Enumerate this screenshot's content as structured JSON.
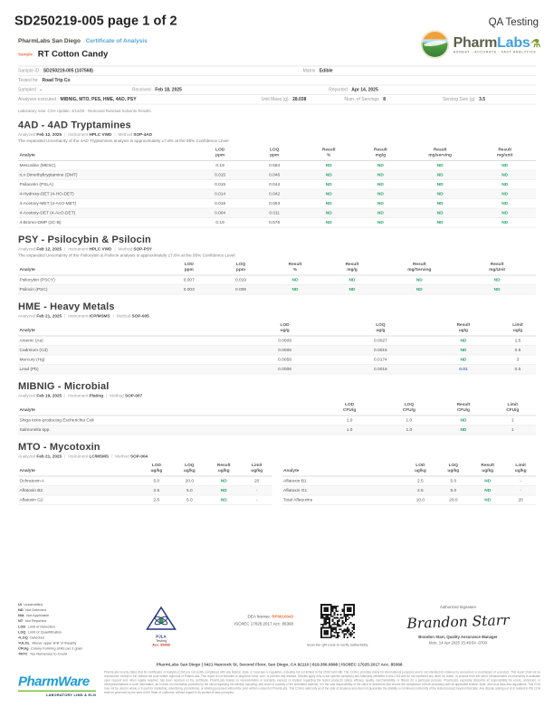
{
  "header": {
    "doc_id": "SD250219-005 page 1 of 2",
    "qa_label": "QA Testing",
    "lab_name": "PharmLabs San Diego",
    "coa_label": "Certificate of Analysis",
    "sample_label": "Sample",
    "sample_name": "RT Cotton Candy",
    "logo": {
      "brand_pharm": "Pharm",
      "brand_labs": "Labs",
      "tagline": "HONEST · ACCURATE · FAST ANALYTICS"
    }
  },
  "sample_info": {
    "sample_id_label": "Sample ID",
    "sample_id": "SD250219-005 (107568)",
    "matrix_label": "Matrix",
    "matrix": "Edible",
    "tested_for_label": "Tested for",
    "tested_for": "Road Trip Co",
    "sampled_label": "Sampled",
    "sampled": "-",
    "received_label": "Received",
    "received": "Feb 18, 2025",
    "reported_label": "Reported",
    "reported": "Apr 14, 2025",
    "analyses_label": "Analyses executed",
    "analyses": "MIBNIG, MTO, PES, HME, 4AD, PSY",
    "unit_mass_label": "Unit Mass (g)",
    "unit_mass": "28.038",
    "servings_label": "Num. of Servings",
    "servings": "8",
    "serving_size_label": "Serving Size (g)",
    "serving_size": "3.5",
    "note": "Laboratory note: COA Update: 4/14/25 - Removed Residual Solvents Results."
  },
  "sections": [
    {
      "title": "4AD - 4AD Tryptamines",
      "meta": [
        [
          "Analyzed",
          "Feb 12, 2025"
        ],
        [
          "Instrument",
          "HPLC VWD"
        ],
        [
          "Method",
          "SOP-4AD"
        ]
      ],
      "uncertainty": "The expanded Uncertainty of the 4AD Tryptamines analysis is approximately ±7.8% at the 95% Confidence Level",
      "tables": [
        {
          "columns": [
            "Analyte",
            "LOD\nppm",
            "LOQ\nppm",
            "Result\n%",
            "Result\nmg/g",
            "Result\nmg/serving",
            "Result\nmg/unit"
          ],
          "widths": [
            34,
            10,
            11,
            10,
            10,
            13,
            12
          ],
          "rows": [
            [
              "Mescaline (MESC)",
              "0.19",
              "0.584",
              "ND",
              "ND",
              "ND",
              "ND"
            ],
            [
              "n,n Dimethyltryptamine (DMT)",
              "0.015",
              "0.046",
              "ND",
              "ND",
              "ND",
              "ND"
            ],
            [
              "Psilacetin (PSLA)",
              "0.015",
              "0.044",
              "ND",
              "ND",
              "ND",
              "ND"
            ],
            [
              "4-Hydroxy-DET (4-HO-DET)",
              "0.014",
              "0.042",
              "ND",
              "ND",
              "ND",
              "ND"
            ],
            [
              "4-Acetoxy-MET (4-AcO-MET)",
              "0.018",
              "0.053",
              "ND",
              "ND",
              "ND",
              "ND"
            ],
            [
              "4-Acetoxy-DET (4-AcO-DET)",
              "0.004",
              "0.011",
              "ND",
              "ND",
              "ND",
              "ND"
            ],
            [
              "4-Bromo-DMP (2C-B)",
              "0.19",
              "0.576",
              "ND",
              "ND",
              "ND",
              "ND"
            ]
          ]
        }
      ]
    },
    {
      "title": "PSY - Psilocybin & Psilocin",
      "meta": [
        [
          "Analyzed",
          "Feb 12, 2025"
        ],
        [
          "Instrument",
          "HPLC VWD"
        ],
        [
          "Method",
          "SOP-PSY"
        ]
      ],
      "uncertainty": "The expanded Uncertainty of the Psilocybin & Psilocin analysis is approximately ±7.8% at the 95% Confidence Level",
      "tables": [
        {
          "columns": [
            "Analyte",
            "LOD\nppm",
            "LOQ\nppm",
            "Result\n%",
            "Result\nmg/g",
            "Result\nmg/Serving",
            "Result\nmg/Unit"
          ],
          "widths": [
            28,
            10,
            10,
            11,
            11,
            15,
            15
          ],
          "rows": [
            [
              "Psilocybin (PSCY)",
              "0.007",
              "0.019",
              "ND",
              "ND",
              "ND",
              "ND"
            ],
            [
              "Psilocin (PSC)",
              "0.003",
              "0.009",
              "ND",
              "ND",
              "ND",
              "ND"
            ]
          ]
        }
      ]
    },
    {
      "title": "HME - Heavy Metals",
      "meta": [
        [
          "Analyzed",
          "Feb 21, 2025"
        ],
        [
          "Instrument",
          "ICP/MSMS"
        ],
        [
          "Method",
          "SOP-005"
        ]
      ],
      "uncertainty": null,
      "tables": [
        {
          "columns": [
            "Analyte",
            "LOD\nug/g",
            "LOQ\nug/g",
            "Result\nug/g",
            "Limit\nug/g"
          ],
          "widths": [
            42,
            19,
            18,
            14,
            7
          ],
          "rows": [
            [
              "Arsenic (As)",
              "0.0009",
              "0.0027",
              "ND",
              "1.5"
            ],
            [
              "Cadmium (Cd)",
              "0.0005",
              "0.0015",
              "ND",
              "0.5"
            ],
            [
              "Mercury (Hg)",
              "0.0058",
              "0.0174",
              "ND",
              "3"
            ],
            [
              "Lead (Pb)",
              "0.0006",
              "0.0018",
              {
                "v": "0.01",
                "c": "det"
              },
              "0.5"
            ]
          ]
        }
      ]
    },
    {
      "title": "MIBNIG - Microbial",
      "meta": [
        [
          "Analyzed",
          "Feb 19, 2025"
        ],
        [
          "Instrument",
          "Plating"
        ],
        [
          "Method",
          "SOP-007"
        ]
      ],
      "uncertainty": null,
      "tables": [
        {
          "columns": [
            "Analyte",
            "LOD\nCFU/g",
            "LOQ\nCFU/g",
            "Result\nCFU/g",
            "Limit\nCFU/g"
          ],
          "widths": [
            58,
            12,
            11,
            10,
            9
          ],
          "rows": [
            [
              "Shiga toxin-producing Escherichia Coli",
              "1.0",
              "1.0",
              "ND",
              "1"
            ],
            [
              "Salmonella spp.",
              "1.0",
              "1.0",
              "ND",
              "1"
            ]
          ]
        }
      ]
    },
    {
      "title": "MTO - Mycotoxin",
      "meta": [
        [
          "Analyzed",
          "Feb 21, 2025"
        ],
        [
          "Instrument",
          "LC/MSMS"
        ],
        [
          "Method",
          "SOP-004"
        ]
      ],
      "uncertainty": null,
      "tables": [
        {
          "columns": [
            "Analyte",
            "LOD\nug/kg",
            "LOQ\nug/kg",
            "Result\nug/kg",
            "Limit\nug/kg"
          ],
          "widths": [
            48,
            13,
            13,
            14,
            12
          ],
          "rows": [
            [
              "Ochratoxin A",
              "5.0",
              "20.0",
              "ND",
              "20"
            ],
            [
              "Aflatoxin B2",
              "2.5",
              "5.0",
              "ND",
              "-"
            ],
            [
              "Aflatoxin G2",
              "2.5",
              "5.0",
              "ND",
              "-"
            ]
          ]
        },
        {
          "columns": [
            "Analyte",
            "LOD\nug/kg",
            "LOQ\nug/kg",
            "Result\nug/kg",
            "Limit\nug/kg"
          ],
          "widths": [
            48,
            13,
            13,
            14,
            12
          ],
          "rows": [
            [
              "Aflatoxin B1",
              "2.5",
              "5.0",
              "ND",
              "-"
            ],
            [
              "Aflatoxin G1",
              "2.5",
              "5.0",
              "ND",
              "-"
            ],
            [
              "Total Aflatoxins",
              "10.0",
              "20.0",
              "ND",
              "20"
            ]
          ]
        }
      ]
    }
  ],
  "footer": {
    "legend": [
      [
        "UI",
        "Unidentified"
      ],
      [
        "ND",
        "Not Detected"
      ],
      [
        "N/A",
        "Not Applicable"
      ],
      [
        "NT",
        "Not Reported"
      ],
      [
        "LOD",
        "Limit of Detection"
      ],
      [
        "LOQ",
        "Limit of Quantification"
      ],
      [
        "<LOQ",
        "Detected"
      ],
      [
        ">ULOL",
        "Above upper limit of linearity"
      ],
      [
        "CFU/g",
        "Colony Forming Units per 1 gram"
      ],
      [
        "TNTC",
        "Too Numerous to Count"
      ]
    ],
    "pjla": {
      "name": "PJLA",
      "sub": "Testing",
      "acc": "Acc. 85368"
    },
    "dea_label": "DEA license:",
    "dea_value": "RP0610043",
    "iso_line": "ISO/IEC 17025:2017 Acc. 85368",
    "qr_caption": "Scan the QR code to verify authenticity.",
    "authorized_label": "Authorized Signature",
    "signature_name": "Brandon Starr",
    "signer_line": "Brandon Starr, Quality Assurance Manager",
    "signed_date": "Mon, 14 Apr 2025 15:49:54 -0700",
    "address": "PharmLabs San Diego | 3421 Hancock St, Second Floor, San Diego, CA 92110 | 619.356.0898 | ISO/IEC 17025:2017 Acc. 85368",
    "pharmware": {
      "name": "PharmWare",
      "tagline": "LABORATORY LIMS & ELN"
    },
    "disclaimer": "PharmLabs hereby states that its Certificates of Analysis (COA) do not certify compliance with any federal, state, or local law or regulation, including but not limited to the 2018 Farm Bill. This COA is provided solely for informational purposes and is not intended for reliance by consumers or purchasers of a product. This report shall not be reproduced, except in full, without the prior written approval of PharmLabs. This report is not intended to diagnose, treat, cure, or prevent any disease. Results apply only to the specific sample(s) and batch(es) identified in this COA and do not represent any other lot, batch, or product from the client. Measurement of uncertainty is available upon request and, when legally required, has been reported on the certificate. PharmLabs makes no representation or warranty, express or implied, regarding the tested product's safety, efficacy, quality, merchantability, or fitness for a particular purpose. PharmLabs expressly disclaims all responsibility for errors, omissions, or misrepresentations in such information, as it relies on information provided by the client regarding the identity, sampling, and chain of custody of the submitted material. It is the sole responsibility of the client to determine and ensure the compliance of their product(s) with all applicable federal, state, and local laws and regulations. This COA may not be used in whole or in part for marketing, advertising, promotional, or labeling purposes without the prior written consent of PharmLabs. This COA is valid only as of the date of issuance and does not guarantee the stability or continued conformity of the tested product beyond that date. Any dispute arising out of or related to this COA shall be governed by the laws of the State of California, without regard to its conflict of laws principles."
  },
  "colors": {
    "nd_green": "#27a26b",
    "detected_blue": "#4472c4",
    "coa_blue": "#55a7d8",
    "sample_orange": "#e8734a",
    "dea_orange": "#f0713a",
    "logo_blue": "#3fa0dc",
    "pharmware_blue": "#1e9cd7"
  }
}
